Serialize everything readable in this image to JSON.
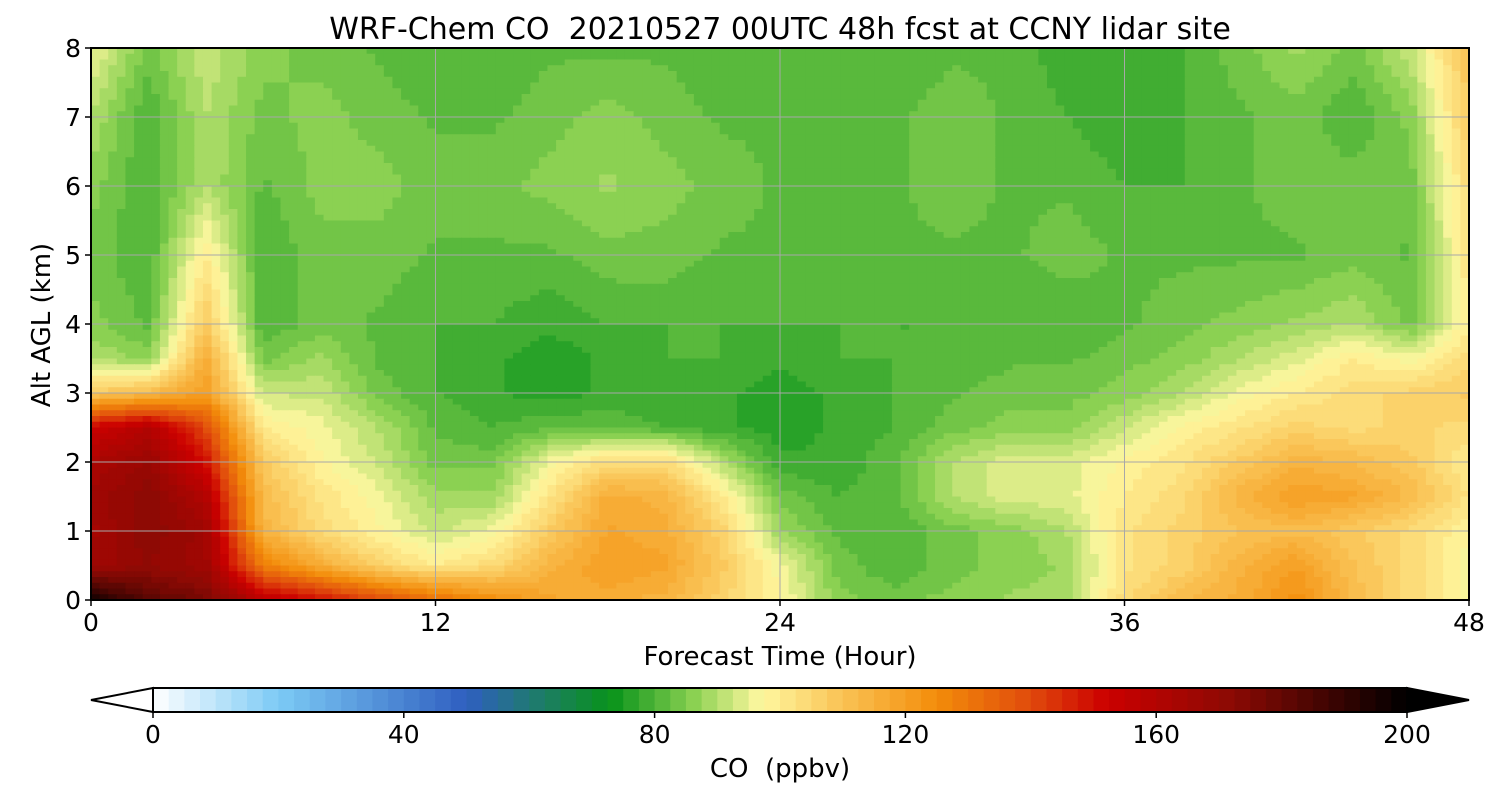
{
  "chart_data": {
    "type": "heatmap",
    "title": "WRF-Chem CO  20210527 00UTC 48h fcst at CCNY lidar site",
    "xlabel": "Forecast Time (Hour)",
    "ylabel": "Alt AGL (km)",
    "xlim": [
      0,
      48
    ],
    "ylim": [
      0,
      8
    ],
    "x_ticks": [
      0,
      12,
      24,
      36,
      48
    ],
    "y_ticks": [
      0,
      1,
      2,
      3,
      4,
      5,
      6,
      7,
      8
    ],
    "grid": true,
    "x": [
      0,
      2,
      4,
      6,
      8,
      10,
      12,
      14,
      16,
      18,
      20,
      22,
      24,
      26,
      28,
      30,
      32,
      34,
      36,
      38,
      40,
      42,
      44,
      46,
      48
    ],
    "y": [
      0,
      0.5,
      1,
      1.5,
      2,
      2.5,
      3,
      3.5,
      4,
      5,
      6,
      7,
      8
    ],
    "z": [
      [
        196,
        182,
        176,
        158,
        150,
        140,
        132,
        124,
        118,
        116,
        114,
        106,
        98,
        86,
        84,
        86,
        88,
        88,
        104,
        112,
        116,
        124,
        112,
        104,
        96
      ],
      [
        166,
        170,
        166,
        128,
        116,
        106,
        100,
        104,
        114,
        120,
        118,
        108,
        96,
        84,
        80,
        84,
        86,
        88,
        102,
        106,
        114,
        120,
        110,
        104,
        96
      ],
      [
        164,
        172,
        166,
        114,
        104,
        98,
        92,
        96,
        108,
        118,
        116,
        106,
        88,
        82,
        80,
        84,
        86,
        90,
        102,
        106,
        110,
        112,
        108,
        104,
        98
      ],
      [
        166,
        172,
        160,
        112,
        102,
        96,
        88,
        88,
        102,
        116,
        114,
        100,
        84,
        80,
        82,
        90,
        94,
        94,
        100,
        104,
        114,
        120,
        118,
        112,
        102
      ],
      [
        162,
        168,
        150,
        108,
        98,
        92,
        84,
        84,
        96,
        104,
        104,
        90,
        78,
        78,
        82,
        90,
        94,
        94,
        98,
        102,
        108,
        114,
        112,
        108,
        100
      ],
      [
        152,
        160,
        140,
        100,
        96,
        90,
        82,
        80,
        82,
        82,
        80,
        78,
        76,
        78,
        80,
        84,
        86,
        86,
        92,
        98,
        102,
        106,
        104,
        106,
        104
      ],
      [
        108,
        112,
        120,
        92,
        92,
        84,
        80,
        78,
        76,
        78,
        78,
        78,
        76,
        78,
        80,
        82,
        84,
        84,
        86,
        90,
        96,
        100,
        104,
        106,
        108
      ],
      [
        90,
        86,
        116,
        84,
        88,
        82,
        80,
        78,
        76,
        78,
        80,
        80,
        78,
        80,
        80,
        80,
        82,
        82,
        84,
        86,
        90,
        94,
        100,
        96,
        104
      ],
      [
        86,
        82,
        108,
        80,
        84,
        82,
        80,
        80,
        78,
        80,
        80,
        80,
        80,
        80,
        80,
        80,
        80,
        80,
        82,
        84,
        86,
        88,
        90,
        84,
        100
      ],
      [
        84,
        80,
        100,
        80,
        84,
        84,
        82,
        82,
        82,
        84,
        84,
        82,
        82,
        82,
        82,
        82,
        82,
        84,
        82,
        82,
        82,
        82,
        84,
        82,
        102
      ],
      [
        86,
        80,
        90,
        82,
        86,
        86,
        84,
        84,
        86,
        88,
        86,
        84,
        82,
        82,
        82,
        84,
        82,
        82,
        80,
        80,
        82,
        84,
        84,
        84,
        104
      ],
      [
        90,
        80,
        90,
        84,
        86,
        84,
        82,
        82,
        84,
        86,
        84,
        82,
        82,
        82,
        82,
        84,
        82,
        80,
        78,
        80,
        82,
        84,
        80,
        86,
        108
      ],
      [
        96,
        84,
        92,
        86,
        84,
        82,
        80,
        80,
        82,
        82,
        82,
        80,
        80,
        80,
        80,
        82,
        82,
        78,
        78,
        80,
        84,
        88,
        84,
        92,
        110
      ]
    ],
    "colorbar": {
      "label": "CO  (ppbv)",
      "min": 0,
      "max": 200,
      "ticks": [
        0,
        40,
        80,
        120,
        160,
        200
      ],
      "extend": "both",
      "stops": [
        {
          "v": 0,
          "c": "#ffffff"
        },
        {
          "v": 20,
          "c": "#7ccaf5"
        },
        {
          "v": 50,
          "c": "#2f5fc0"
        },
        {
          "v": 62,
          "c": "#1d7d66"
        },
        {
          "v": 73,
          "c": "#08921a"
        },
        {
          "v": 86,
          "c": "#88d050"
        },
        {
          "v": 97,
          "c": "#fff8a0"
        },
        {
          "v": 110,
          "c": "#fac254"
        },
        {
          "v": 125,
          "c": "#f38c0a"
        },
        {
          "v": 140,
          "c": "#e04a0c"
        },
        {
          "v": 152,
          "c": "#cc0000"
        },
        {
          "v": 172,
          "c": "#8c0a04"
        },
        {
          "v": 200,
          "c": "#000000"
        }
      ]
    }
  }
}
